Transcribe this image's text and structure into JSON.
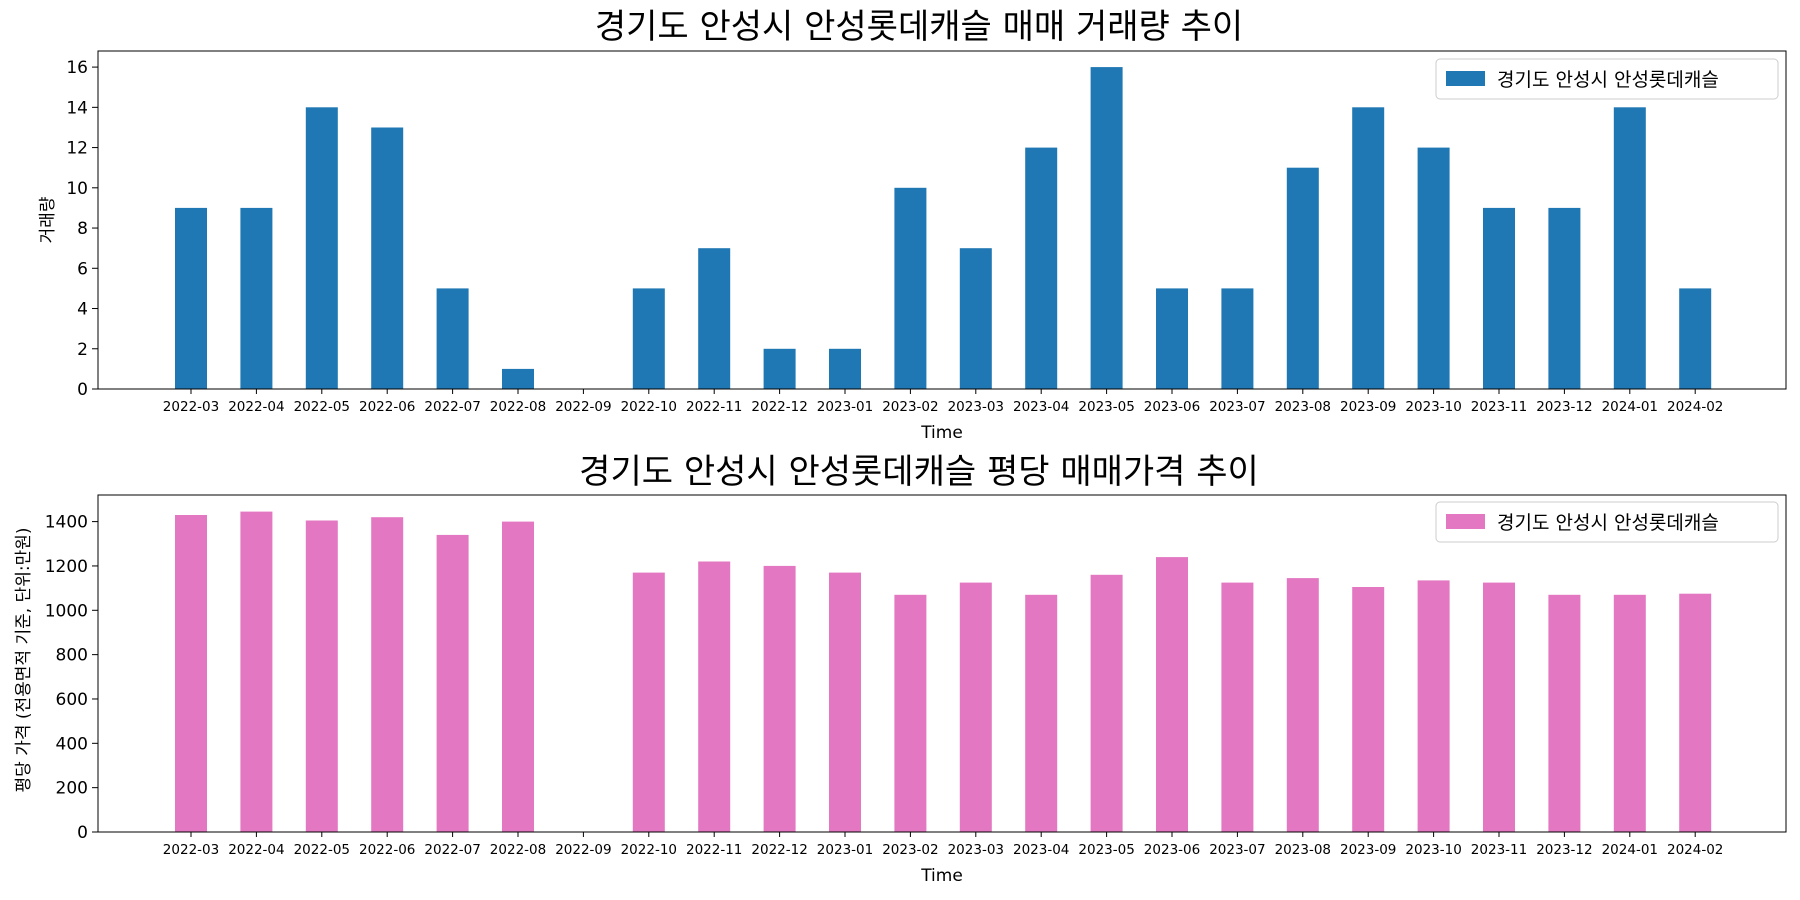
{
  "chart_data": [
    {
      "type": "bar",
      "title": "경기도 안성시 안성롯데캐슬 매매 거래량 추이",
      "xlabel": "Time",
      "ylabel": "거래량",
      "ylim": [
        0,
        16.8
      ],
      "yticks": [
        "0",
        "2",
        "4",
        "6",
        "8",
        "10",
        "12",
        "14",
        "16"
      ],
      "legend_position": "top-right",
      "color": "#1f77b4",
      "categories": [
        "2022-03",
        "2022-04",
        "2022-05",
        "2022-06",
        "2022-07",
        "2022-08",
        "2022-09",
        "2022-10",
        "2022-11",
        "2022-12",
        "2023-01",
        "2023-02",
        "2023-03",
        "2023-04",
        "2023-05",
        "2023-06",
        "2023-07",
        "2023-08",
        "2023-09",
        "2023-10",
        "2023-11",
        "2023-12",
        "2024-01",
        "2024-02"
      ],
      "series": [
        {
          "name": "경기도 안성시 안성롯데캐슬",
          "values": [
            9,
            9,
            14,
            13,
            5,
            1,
            0,
            5,
            7,
            2,
            2,
            10,
            7,
            12,
            16,
            5,
            5,
            11,
            14,
            12,
            9,
            9,
            14,
            5
          ]
        }
      ]
    },
    {
      "type": "bar",
      "title": "경기도 안성시 안성롯데캐슬 평당 매매가격 추이",
      "xlabel": "Time",
      "ylabel": "평당 가격 (전용면적 기준, 단위:만원)",
      "ylim": [
        0,
        1520
      ],
      "yticks": [
        "0",
        "200",
        "400",
        "600",
        "800",
        "1000",
        "1200",
        "1400"
      ],
      "legend_position": "top-right",
      "color": "#e377c2",
      "categories": [
        "2022-03",
        "2022-04",
        "2022-05",
        "2022-06",
        "2022-07",
        "2022-08",
        "2022-09",
        "2022-10",
        "2022-11",
        "2022-12",
        "2023-01",
        "2023-02",
        "2023-03",
        "2023-04",
        "2023-05",
        "2023-06",
        "2023-07",
        "2023-08",
        "2023-09",
        "2023-10",
        "2023-11",
        "2023-12",
        "2024-01",
        "2024-02"
      ],
      "series": [
        {
          "name": "경기도 안성시 안성롯데캐슬",
          "values": [
            1430,
            1445,
            1405,
            1420,
            1340,
            1400,
            null,
            1170,
            1220,
            1200,
            1170,
            1070,
            1125,
            1070,
            1160,
            1240,
            1125,
            1145,
            1105,
            1135,
            1125,
            1070,
            1070,
            1075
          ]
        }
      ]
    }
  ]
}
